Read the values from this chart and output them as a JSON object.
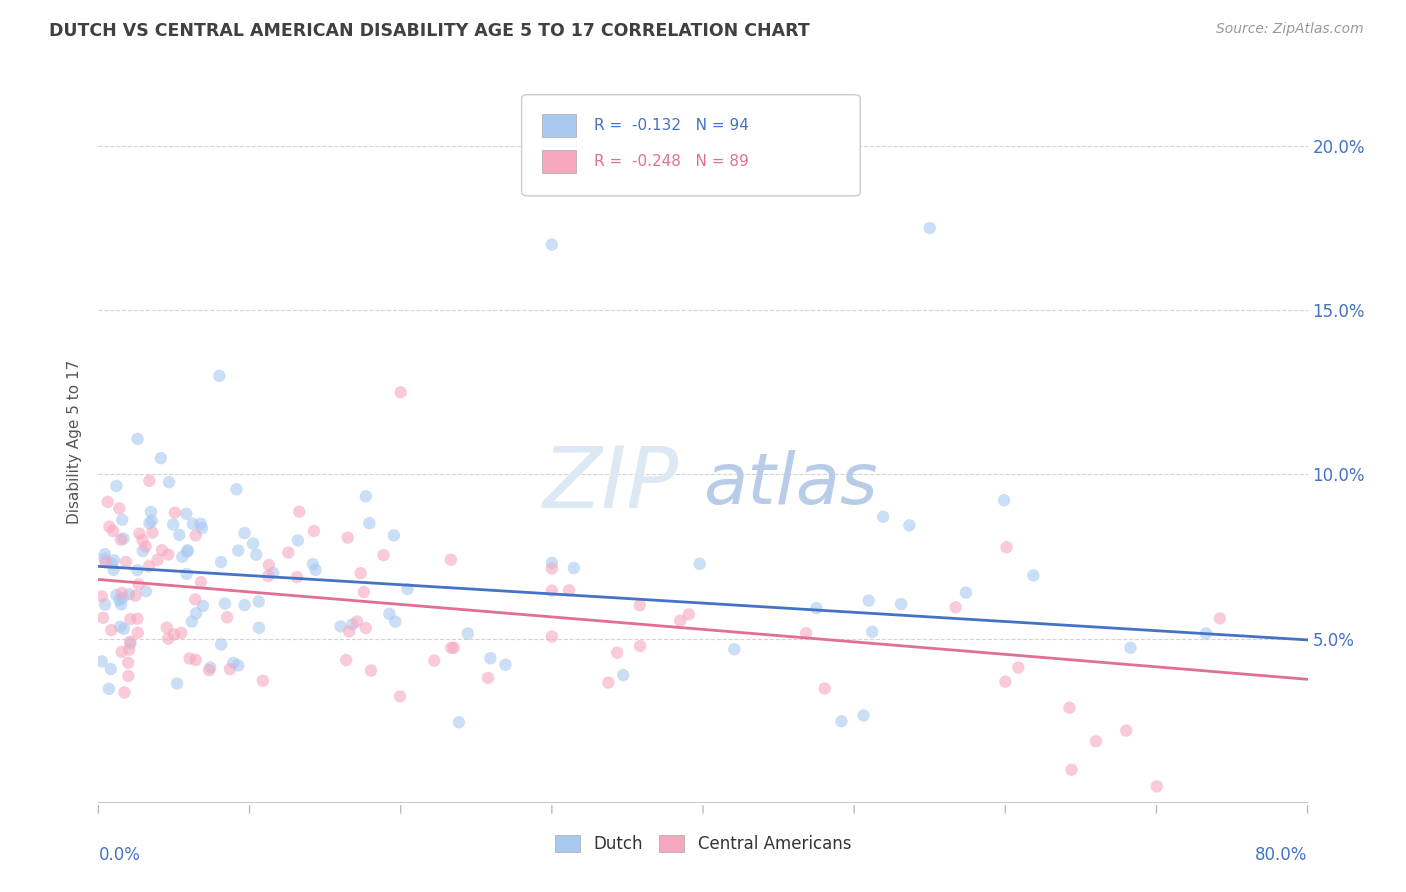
{
  "title": "DUTCH VS CENTRAL AMERICAN DISABILITY AGE 5 TO 17 CORRELATION CHART",
  "source": "Source: ZipAtlas.com",
  "ylabel": "Disability Age 5 to 17",
  "xmin": 0.0,
  "xmax": 80.0,
  "ymin": 0.0,
  "ymax": 22.0,
  "yticks": [
    0.0,
    5.0,
    10.0,
    15.0,
    20.0
  ],
  "ytick_labels": [
    "",
    "5.0%",
    "10.0%",
    "15.0%",
    "20.0%"
  ],
  "dutch_R": -0.132,
  "dutch_N": 94,
  "ca_R": -0.248,
  "ca_N": 89,
  "dutch_color": "#A8C8F0",
  "ca_color": "#F5A8BE",
  "dutch_line_color": "#4472C4",
  "ca_line_color": "#E07090",
  "background_color": "#FFFFFF",
  "grid_color": "#C8C8C8",
  "title_color": "#404040",
  "source_color": "#999999",
  "legend_text_color": "#4472C4",
  "ca_legend_text_color": "#E07090",
  "right_axis_color": "#4472C4",
  "watermark_color": "#DDE8F5",
  "dutch_line_intercept": 7.2,
  "dutch_line_slope": -0.028,
  "ca_line_intercept": 6.8,
  "ca_line_slope": -0.038
}
